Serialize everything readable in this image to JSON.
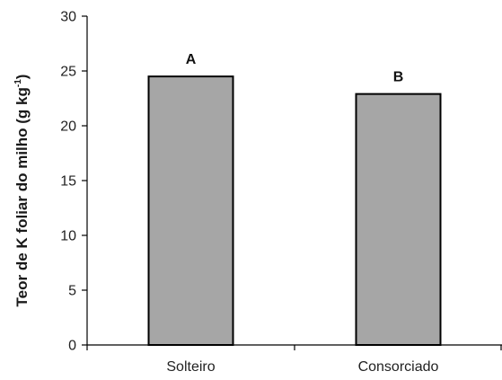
{
  "chart_data": {
    "type": "bar",
    "categories": [
      "Solteiro",
      "Consorciado"
    ],
    "values": [
      24.5,
      22.9
    ],
    "data_labels": [
      "A",
      "B"
    ],
    "title": "",
    "xlabel": "",
    "ylabel": {
      "text": "Teor de K foliar do milho (g kg",
      "superscript": "-1",
      "suffix": ")"
    },
    "ylim": [
      0,
      30
    ],
    "yticks": [
      "0",
      "5",
      "10",
      "15",
      "20",
      "25",
      "30"
    ],
    "grid": false,
    "legend": "none",
    "colors": {
      "bar_fill": "#a6a6a6",
      "bar_stroke": "#000000",
      "axis": "#000000"
    }
  }
}
